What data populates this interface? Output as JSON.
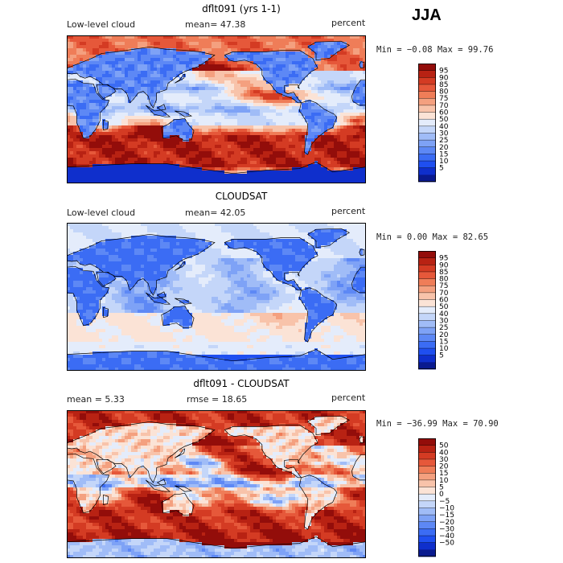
{
  "season_label": "JJA",
  "colors": {
    "abs_scale": [
      "#0a1a8f",
      "#0f2fcc",
      "#1f4ff0",
      "#3b6cf4",
      "#5d88f5",
      "#7ea2f6",
      "#a0bcf7",
      "#c4d6f9",
      "#e4ecfb",
      "#fbe3d6",
      "#f8c3aa",
      "#f4a07f",
      "#ef7d58",
      "#e6583a",
      "#d43b23",
      "#b82213",
      "#930d0a"
    ],
    "diff_scale": [
      "#0a1a8f",
      "#0f2fcc",
      "#1f4ff0",
      "#3b6cf4",
      "#5d88f5",
      "#7ea2f6",
      "#a0bcf7",
      "#c4d6f9",
      "#e4ecfb",
      "#fbe3d6",
      "#f8c3aa",
      "#f4a07f",
      "#ef7d58",
      "#e6583a",
      "#d43b23",
      "#b82213",
      "#930d0a"
    ]
  },
  "chart_data": [
    {
      "type": "heatmap",
      "title": "dflt091 (yrs 1-1)",
      "left_label": "Low-level cloud",
      "stat_text": "mean=  47.38",
      "units": "percent",
      "min_max_text": "Min =  −0.08 Max =  99.76",
      "min": -0.08,
      "max": 99.76,
      "mean": 47.38,
      "colorbar_levels": [
        "95",
        "90",
        "85",
        "80",
        "75",
        "70",
        "60",
        "50",
        "40",
        "30",
        "25",
        "20",
        "15",
        "10",
        "5"
      ],
      "field": "model"
    },
    {
      "type": "heatmap",
      "title": "CLOUDSAT",
      "left_label": "Low-level cloud",
      "stat_text": "mean=  42.05",
      "units": "percent",
      "min_max_text": "Min =   0.00 Max =  82.65",
      "min": 0.0,
      "max": 82.65,
      "mean": 42.05,
      "colorbar_levels": [
        "95",
        "90",
        "85",
        "80",
        "75",
        "70",
        "60",
        "50",
        "40",
        "30",
        "25",
        "20",
        "15",
        "10",
        "5"
      ],
      "field": "obs"
    },
    {
      "type": "heatmap",
      "title": "dflt091 - CLOUDSAT",
      "left_label": "mean =    5.33",
      "stat_text": "rmse =   18.65",
      "units": "percent",
      "min_max_text": "Min = −36.99 Max =  70.90",
      "min": -36.99,
      "max": 70.9,
      "mean": 5.33,
      "rmse": 18.65,
      "colorbar_levels": [
        "50",
        "40",
        "30",
        "20",
        "15",
        "10",
        "5",
        "0",
        "−5",
        "−10",
        "−15",
        "−20",
        "−30",
        "−40",
        "−50"
      ],
      "field": "diff"
    }
  ]
}
